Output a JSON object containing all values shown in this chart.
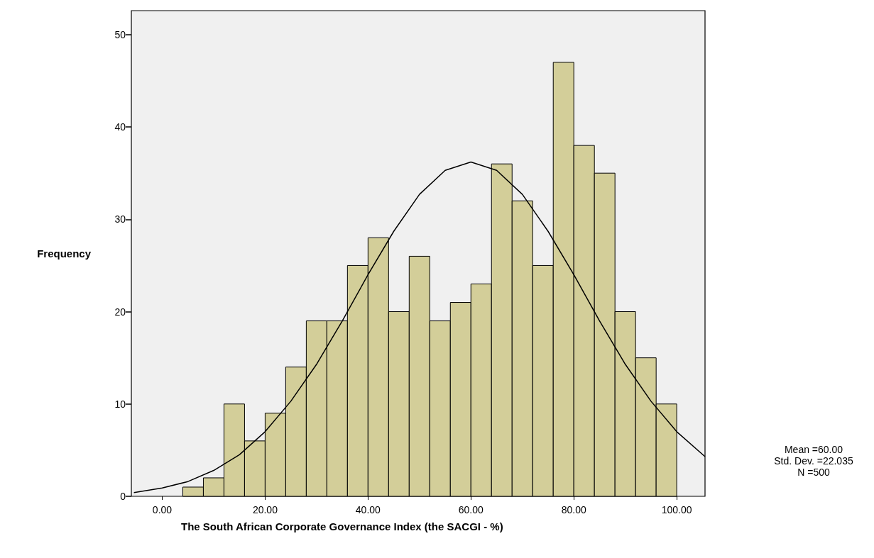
{
  "chart_data": {
    "type": "histogram",
    "xlabel": "The South African Corporate Governance Index (the SACGI - %)",
    "ylabel": "Frequency",
    "bins": [
      4,
      8,
      12,
      16,
      20,
      24,
      28,
      32,
      36,
      40,
      44,
      48,
      52,
      56,
      60,
      64,
      68,
      72,
      76,
      80,
      84,
      88,
      92,
      96,
      100
    ],
    "values": [
      1,
      2,
      10,
      6,
      9,
      14,
      19,
      19,
      25,
      28,
      20,
      26,
      19,
      21,
      23,
      36,
      32,
      25,
      47,
      38,
      35,
      20,
      15,
      10
    ],
    "color": "#d3ce99",
    "series": [
      {
        "type": "line",
        "color": "#000000",
        "x": [
          -5.5,
          0,
          5,
          10,
          15,
          20,
          25,
          30,
          35,
          40,
          45,
          50,
          55,
          60,
          65,
          70,
          75,
          80,
          85,
          90,
          95,
          100,
          105.5
        ],
        "values": [
          0.4,
          0.9,
          1.6,
          2.8,
          4.5,
          7.0,
          10.3,
          14.3,
          19.0,
          24.0,
          28.7,
          32.7,
          35.3,
          36.2,
          35.3,
          32.7,
          28.7,
          24.0,
          19.0,
          14.3,
          10.3,
          7.0,
          4.3
        ]
      }
    ],
    "xlim": [
      -6,
      105.5
    ],
    "ylim": [
      0,
      52.6
    ],
    "xticks": [
      {
        "value": 0,
        "label": "0.00"
      },
      {
        "value": 20,
        "label": "20.00"
      },
      {
        "value": 40,
        "label": "40.00"
      },
      {
        "value": 60,
        "label": "60.00"
      },
      {
        "value": 80,
        "label": "80.00"
      },
      {
        "value": 100,
        "label": "100.00"
      }
    ],
    "yticks": [
      0,
      10,
      20,
      30,
      40,
      50
    ],
    "grid": false,
    "legend": false,
    "marker": "none",
    "line_style": "solid",
    "annotations": [
      "Mean =60.00",
      "Std. Dev. =22.035",
      "N =500"
    ]
  }
}
